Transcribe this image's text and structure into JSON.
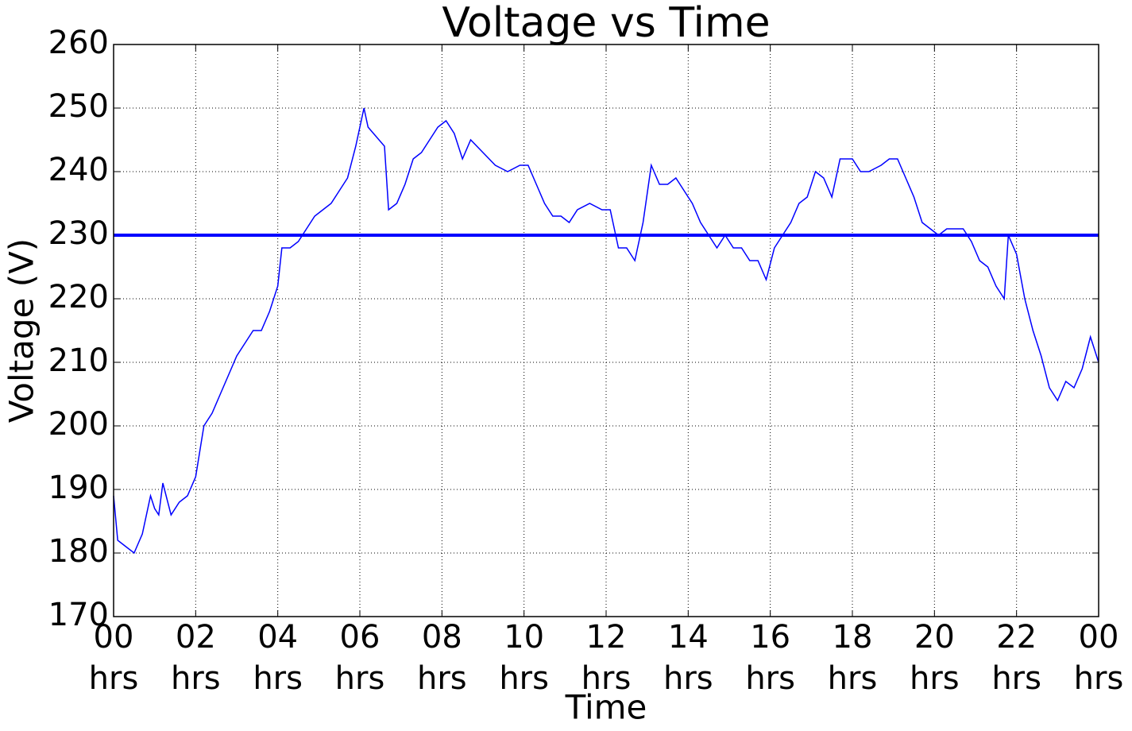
{
  "chart_data": {
    "type": "line",
    "title": "Voltage vs Time",
    "xlabel": "Time",
    "ylabel": "Voltage (V)",
    "x": [
      0,
      0.1,
      0.3,
      0.5,
      0.7,
      0.9,
      1.0,
      1.1,
      1.2,
      1.4,
      1.6,
      1.8,
      2.0,
      2.2,
      2.4,
      2.6,
      2.8,
      3.0,
      3.2,
      3.4,
      3.6,
      3.8,
      4.0,
      4.1,
      4.3,
      4.5,
      4.7,
      4.9,
      5.1,
      5.3,
      5.5,
      5.7,
      5.9,
      6.1,
      6.2,
      6.6,
      6.7,
      6.9,
      7.1,
      7.3,
      7.5,
      7.7,
      7.9,
      8.1,
      8.3,
      8.5,
      8.7,
      9.0,
      9.3,
      9.6,
      9.9,
      10.1,
      10.3,
      10.5,
      10.7,
      10.9,
      11.1,
      11.3,
      11.6,
      11.9,
      12.1,
      12.3,
      12.5,
      12.7,
      12.9,
      13.1,
      13.3,
      13.5,
      13.7,
      13.9,
      14.1,
      14.3,
      14.5,
      14.7,
      14.9,
      15.1,
      15.3,
      15.5,
      15.7,
      15.9,
      16.1,
      16.3,
      16.5,
      16.7,
      16.9,
      17.1,
      17.3,
      17.5,
      17.7,
      18.0,
      18.2,
      18.4,
      18.7,
      18.9,
      19.1,
      19.3,
      19.5,
      19.7,
      19.9,
      20.1,
      20.3,
      20.5,
      20.7,
      20.9,
      21.1,
      21.3,
      21.5,
      21.7,
      21.8,
      22.0,
      22.2,
      22.4,
      22.6,
      22.8,
      23.0,
      23.2,
      23.4,
      23.6,
      23.8,
      24.0
    ],
    "series": [
      {
        "color": "#0000ff",
        "values": [
          189,
          182,
          181,
          180,
          183,
          189,
          187,
          186,
          191,
          186,
          188,
          189,
          192,
          200,
          202,
          205,
          208,
          211,
          213,
          215,
          215,
          218,
          222,
          228,
          228,
          229,
          231,
          233,
          234,
          235,
          237,
          239,
          244,
          250,
          247,
          244,
          234,
          235,
          238,
          242,
          243,
          245,
          247,
          248,
          246,
          242,
          245,
          243,
          241,
          240,
          241,
          241,
          238,
          235,
          233,
          233,
          232,
          234,
          235,
          234,
          234,
          228,
          228,
          226,
          232,
          241,
          238,
          238,
          239,
          237,
          235,
          232,
          230,
          228,
          230,
          228,
          228,
          226,
          226,
          223,
          228,
          230,
          232,
          235,
          236,
          240,
          239,
          236,
          242,
          242,
          240,
          240,
          241,
          242,
          242,
          239,
          236,
          232,
          231,
          230,
          231,
          231,
          231,
          229,
          226,
          225,
          222,
          220,
          230,
          227,
          220,
          215,
          211,
          206,
          204,
          207,
          206,
          209,
          214,
          210
        ]
      }
    ],
    "hline": {
      "value": 230,
      "color": "#0000ff"
    },
    "xlim": [
      0,
      24
    ],
    "xticks": [
      {
        "value": 0,
        "label": "00 hrs"
      },
      {
        "value": 2,
        "label": "02 hrs"
      },
      {
        "value": 4,
        "label": "04 hrs"
      },
      {
        "value": 6,
        "label": "06 hrs"
      },
      {
        "value": 8,
        "label": "08 hrs"
      },
      {
        "value": 10,
        "label": "10 hrs"
      },
      {
        "value": 12,
        "label": "12 hrs"
      },
      {
        "value": 14,
        "label": "14 hrs"
      },
      {
        "value": 16,
        "label": "16 hrs"
      },
      {
        "value": 18,
        "label": "18 hrs"
      },
      {
        "value": 20,
        "label": "20 hrs"
      },
      {
        "value": 22,
        "label": "22 hrs"
      },
      {
        "value": 24,
        "label": "00 hrs"
      }
    ],
    "ylim": [
      170,
      260
    ],
    "yticks": [
      170,
      180,
      190,
      200,
      210,
      220,
      230,
      240,
      250,
      260
    ],
    "grid": true
  }
}
